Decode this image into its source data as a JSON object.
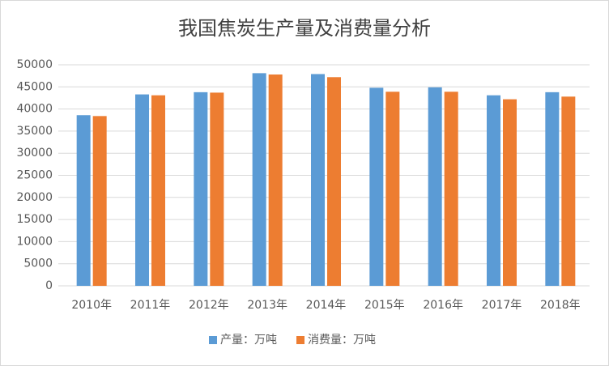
{
  "chart_data": {
    "type": "bar",
    "title": "我国焦炭生产量及消费量分析",
    "categories": [
      "2010年",
      "2011年",
      "2012年",
      "2013年",
      "2014年",
      "2015年",
      "2016年",
      "2017年",
      "2018年"
    ],
    "series": [
      {
        "name": "产量：万吨",
        "color": "#5b9bd5",
        "values": [
          38600,
          43300,
          43800,
          48100,
          47900,
          44800,
          44900,
          43100,
          43800
        ]
      },
      {
        "name": "消费量：万吨",
        "color": "#ed7d31",
        "values": [
          38400,
          43100,
          43700,
          47800,
          47200,
          43900,
          43900,
          42200,
          42800
        ]
      }
    ],
    "ylim": [
      0,
      50000
    ],
    "yticks": [
      0,
      5000,
      10000,
      15000,
      20000,
      25000,
      30000,
      35000,
      40000,
      45000,
      50000
    ],
    "grid": true,
    "legend": "bottom"
  }
}
